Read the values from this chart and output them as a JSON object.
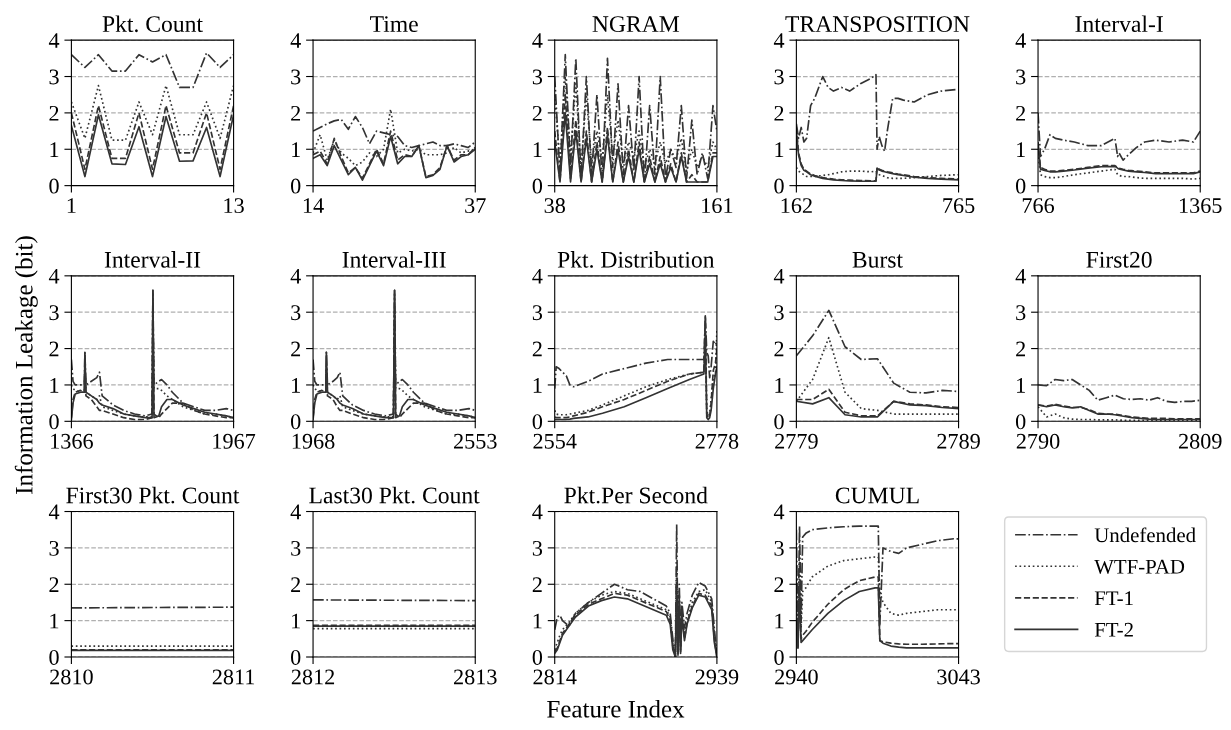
{
  "chart_data": [
    {
      "type": "line",
      "title": "Pkt. Count",
      "x": [
        1,
        2,
        3,
        4,
        5,
        6,
        7,
        8,
        9,
        10,
        11,
        12,
        13
      ],
      "xlim": [
        1,
        13
      ],
      "xticks": [
        1,
        13
      ],
      "ylim": [
        0,
        4
      ],
      "yticks": [
        0,
        1,
        2,
        3,
        4
      ],
      "grid": "y",
      "series": [
        {
          "color": "#333333",
          "line_style": "dashdot",
          "values": [
            3.6,
            3.25,
            3.6,
            3.15,
            3.15,
            3.6,
            3.4,
            3.6,
            2.7,
            2.7,
            3.65,
            3.25,
            3.6
          ]
        },
        {
          "color": "#333333",
          "line_style": "dotted",
          "values": [
            2.3,
            1.3,
            2.75,
            1.25,
            1.25,
            2.3,
            1.4,
            2.75,
            1.4,
            1.4,
            2.3,
            1.3,
            2.75
          ]
        },
        {
          "color": "#333333",
          "line_style": "dashed",
          "values": [
            2.0,
            0.45,
            2.2,
            0.75,
            0.75,
            2.0,
            0.45,
            2.2,
            0.9,
            0.9,
            2.0,
            0.45,
            2.2
          ]
        },
        {
          "color": "#333333",
          "line_style": "solid",
          "values": [
            1.65,
            0.25,
            1.95,
            0.6,
            0.58,
            1.62,
            0.25,
            1.9,
            0.67,
            0.68,
            1.6,
            0.25,
            1.95
          ]
        }
      ]
    },
    {
      "type": "line",
      "title": "Time",
      "x": [
        14,
        15,
        16,
        17,
        18,
        19,
        20,
        21,
        22,
        23,
        24,
        25,
        26,
        27,
        28,
        29,
        30,
        31,
        32,
        33,
        34,
        35,
        36,
        37
      ],
      "xlim": [
        14,
        37
      ],
      "xticks": [
        14,
        37
      ],
      "ylim": [
        0,
        4
      ],
      "yticks": [
        0,
        1,
        2,
        3,
        4
      ],
      "grid": "y",
      "series": [
        {
          "color": "#333333",
          "line_style": "dashdot",
          "values": [
            1.5,
            1.6,
            1.7,
            1.78,
            1.82,
            1.55,
            1.9,
            1.6,
            1.15,
            1.5,
            1.45,
            1.4,
            1.35,
            1.1,
            1.05,
            1.1,
            1.15,
            1.2,
            1.1,
            1.1,
            1.15,
            1.1,
            1.05,
            1.2
          ]
        },
        {
          "color": "#333333",
          "line_style": "dotted",
          "values": [
            0.9,
            1.4,
            0.7,
            1.25,
            0.9,
            0.75,
            0.55,
            0.65,
            0.9,
            0.8,
            1.0,
            2.1,
            0.9,
            1.0,
            0.95,
            1.0,
            0.85,
            0.85,
            0.85,
            0.9,
            1.05,
            0.9,
            0.95,
            1.0
          ]
        },
        {
          "color": "#333333",
          "line_style": "dashed",
          "values": [
            0.85,
            0.95,
            0.6,
            1.3,
            0.8,
            0.35,
            0.5,
            0.2,
            0.6,
            1.0,
            0.6,
            1.5,
            0.7,
            0.85,
            0.8,
            1.1,
            0.25,
            0.3,
            0.5,
            1.1,
            0.7,
            0.85,
            0.85,
            1.05
          ]
        },
        {
          "color": "#333333",
          "line_style": "solid",
          "values": [
            0.75,
            0.85,
            0.55,
            1.1,
            0.7,
            0.3,
            0.5,
            0.15,
            0.55,
            0.95,
            0.55,
            1.35,
            0.6,
            0.8,
            0.8,
            1.1,
            0.22,
            0.28,
            0.45,
            1.1,
            0.65,
            0.8,
            0.85,
            1.0
          ]
        }
      ]
    },
    {
      "type": "line",
      "title": "NGRAM",
      "x": [
        38,
        42,
        46,
        50,
        54,
        58,
        62,
        66,
        70,
        74,
        78,
        82,
        86,
        90,
        94,
        98,
        102,
        106,
        110,
        114,
        118,
        122,
        126,
        130,
        134,
        138,
        142,
        146,
        150,
        154,
        158,
        161
      ],
      "xlim": [
        38,
        161
      ],
      "xticks": [
        38,
        161
      ],
      "ylim": [
        0,
        4
      ],
      "yticks": [
        0,
        1,
        2,
        3,
        4
      ],
      "grid": "y",
      "series": [
        {
          "color": "#333333",
          "line_style": "dashdot",
          "values": [
            3.0,
            0.3,
            3.6,
            0.5,
            3.5,
            0.2,
            3.0,
            0.3,
            2.5,
            0.2,
            3.5,
            0.5,
            2.8,
            0.3,
            2.2,
            0.4,
            3.0,
            0.1,
            2.2,
            0.3,
            3.0,
            0.2,
            1.0,
            0.5,
            2.2,
            0.2,
            1.8,
            0.3,
            0.9,
            0.2,
            2.2,
            1.5
          ]
        },
        {
          "color": "#333333",
          "line_style": "dotted",
          "values": [
            2.5,
            0.6,
            3.0,
            0.8,
            2.8,
            0.5,
            2.5,
            0.6,
            1.5,
            0.7,
            2.5,
            0.8,
            1.8,
            0.6,
            1.2,
            0.8,
            1.5,
            0.5,
            1.0,
            0.6,
            1.2,
            0.6,
            1.0,
            0.7,
            1.3,
            0.4,
            1.0,
            0.5,
            0.8,
            0.5,
            1.2,
            1.0
          ]
        },
        {
          "color": "#333333",
          "line_style": "dashed",
          "values": [
            1.5,
            0.1,
            2.5,
            0.2,
            1.8,
            0.1,
            1.5,
            0.1,
            1.2,
            0.1,
            1.6,
            0.1,
            1.2,
            0.1,
            1.0,
            0.1,
            1.2,
            0.1,
            0.8,
            0.1,
            0.8,
            0.1,
            0.6,
            0.1,
            0.9,
            0.1,
            0.3,
            0.1,
            0.1,
            0.1,
            0.9,
            0.9
          ]
        },
        {
          "color": "#333333",
          "line_style": "solid",
          "values": [
            1.2,
            0.1,
            2.0,
            0.1,
            1.5,
            0.1,
            1.3,
            0.1,
            1.0,
            0.1,
            1.4,
            0.1,
            1.0,
            0.1,
            0.8,
            0.1,
            1.0,
            0.1,
            0.6,
            0.1,
            0.6,
            0.1,
            0.5,
            0.1,
            0.8,
            0.1,
            0.1,
            0.1,
            0.1,
            0.1,
            0.8,
            0.8
          ]
        }
      ]
    },
    {
      "type": "line",
      "title": "TRANSPOSITION",
      "x": [
        162,
        170,
        180,
        190,
        200,
        215,
        230,
        260,
        280,
        300,
        330,
        360,
        400,
        440,
        458,
        462,
        470,
        480,
        490,
        500,
        520,
        540,
        560,
        600,
        650,
        700,
        765
      ],
      "xlim": [
        162,
        765
      ],
      "xticks": [
        162,
        765
      ],
      "ylim": [
        0,
        4
      ],
      "yticks": [
        0,
        1,
        2,
        3,
        4
      ],
      "grid": "y",
      "series": [
        {
          "color": "#333333",
          "line_style": "dashdot",
          "values": [
            1.7,
            1.3,
            1.6,
            1.2,
            1.3,
            2.2,
            2.4,
            3.0,
            2.7,
            2.6,
            2.7,
            2.6,
            2.8,
            2.95,
            3.05,
            1.0,
            1.35,
            1.1,
            0.95,
            1.5,
            2.4,
            2.4,
            2.35,
            2.3,
            2.5,
            2.6,
            2.65
          ]
        },
        {
          "color": "#333333",
          "line_style": "dotted",
          "values": [
            0.5,
            0.4,
            0.35,
            0.3,
            0.25,
            0.25,
            0.25,
            0.28,
            0.3,
            0.33,
            0.38,
            0.4,
            0.4,
            0.38,
            0.4,
            0.35,
            0.3,
            0.28,
            0.25,
            0.22,
            0.2,
            0.2,
            0.2,
            0.22,
            0.25,
            0.28,
            0.3
          ]
        },
        {
          "color": "#333333",
          "line_style": "dashed",
          "values": [
            1.6,
            0.9,
            0.6,
            0.45,
            0.4,
            0.32,
            0.28,
            0.22,
            0.2,
            0.18,
            0.16,
            0.15,
            0.14,
            0.13,
            0.13,
            0.5,
            0.45,
            0.42,
            0.4,
            0.38,
            0.35,
            0.32,
            0.3,
            0.25,
            0.22,
            0.2,
            0.18
          ]
        },
        {
          "color": "#333333",
          "line_style": "solid",
          "values": [
            1.5,
            0.85,
            0.55,
            0.42,
            0.38,
            0.3,
            0.26,
            0.2,
            0.18,
            0.16,
            0.14,
            0.13,
            0.12,
            0.12,
            0.12,
            0.48,
            0.43,
            0.4,
            0.38,
            0.36,
            0.33,
            0.3,
            0.28,
            0.23,
            0.2,
            0.18,
            0.16
          ]
        }
      ]
    },
    {
      "type": "line",
      "title": "Interval-I",
      "x": [
        766,
        775,
        790,
        810,
        830,
        860,
        900,
        950,
        1000,
        1050,
        1060,
        1065,
        1080,
        1100,
        1130,
        1160,
        1200,
        1250,
        1300,
        1340,
        1365
      ],
      "xlim": [
        766,
        1365
      ],
      "xticks": [
        766,
        1365
      ],
      "ylim": [
        0,
        4
      ],
      "yticks": [
        0,
        1,
        2,
        3,
        4
      ],
      "grid": "y",
      "series": [
        {
          "color": "#333333",
          "line_style": "dashdot",
          "values": [
            2.0,
            0.8,
            1.0,
            1.4,
            1.3,
            1.25,
            1.2,
            1.1,
            1.1,
            1.3,
            0.8,
            0.9,
            0.7,
            0.85,
            1.05,
            1.2,
            1.25,
            1.2,
            1.25,
            1.2,
            1.5
          ]
        },
        {
          "color": "#333333",
          "line_style": "dotted",
          "values": [
            0.9,
            0.3,
            0.25,
            0.22,
            0.22,
            0.25,
            0.3,
            0.35,
            0.4,
            0.45,
            0.3,
            0.28,
            0.25,
            0.25,
            0.22,
            0.2,
            0.2,
            0.2,
            0.2,
            0.18,
            0.2
          ]
        },
        {
          "color": "#333333",
          "line_style": "dashed",
          "values": [
            1.2,
            0.5,
            0.45,
            0.4,
            0.4,
            0.42,
            0.45,
            0.5,
            0.55,
            0.55,
            0.5,
            0.48,
            0.45,
            0.42,
            0.4,
            0.38,
            0.35,
            0.35,
            0.35,
            0.35,
            0.4
          ]
        },
        {
          "color": "#333333",
          "line_style": "solid",
          "values": [
            1.1,
            0.45,
            0.42,
            0.38,
            0.38,
            0.4,
            0.43,
            0.48,
            0.52,
            0.53,
            0.48,
            0.46,
            0.43,
            0.4,
            0.38,
            0.36,
            0.33,
            0.33,
            0.33,
            0.33,
            0.38
          ]
        }
      ]
    },
    {
      "type": "line",
      "title": "Interval-II",
      "ylabel": "Information Leakage (bit)",
      "x": [
        1366,
        1372,
        1380,
        1400,
        1414,
        1416,
        1420,
        1440,
        1460,
        1470,
        1480,
        1520,
        1560,
        1600,
        1640,
        1665,
        1668,
        1672,
        1690,
        1700,
        1720,
        1740,
        1780,
        1820,
        1860,
        1900,
        1940,
        1967
      ],
      "xlim": [
        1366,
        1967
      ],
      "xticks": [
        1366,
        1967
      ],
      "ylim": [
        0,
        4
      ],
      "yticks": [
        0,
        1,
        2,
        3,
        4
      ],
      "grid": "y",
      "series": [
        {
          "color": "#333333",
          "line_style": "dashdot",
          "values": [
            1.7,
            1.1,
            1.0,
            1.0,
            1.0,
            1.9,
            1.0,
            1.1,
            1.2,
            1.35,
            0.7,
            0.45,
            0.3,
            0.2,
            0.15,
            0.2,
            3.6,
            1.0,
            1.1,
            1.15,
            1.0,
            0.8,
            0.5,
            0.4,
            0.3,
            0.3,
            0.35,
            0.3
          ]
        },
        {
          "color": "#333333",
          "line_style": "dotted",
          "values": [
            1.0,
            0.9,
            0.85,
            0.8,
            0.8,
            1.5,
            0.8,
            0.7,
            0.6,
            0.7,
            0.4,
            0.3,
            0.2,
            0.15,
            0.12,
            0.12,
            3.0,
            0.9,
            0.9,
            0.85,
            0.7,
            0.6,
            0.4,
            0.3,
            0.2,
            0.2,
            0.15,
            0.1
          ]
        },
        {
          "color": "#333333",
          "line_style": "dashed",
          "values": [
            0.1,
            0.6,
            0.8,
            0.85,
            0.8,
            1.5,
            0.7,
            0.6,
            0.4,
            0.3,
            0.3,
            0.2,
            0.1,
            0.05,
            0.05,
            0.1,
            3.5,
            0.2,
            0.1,
            0.2,
            0.35,
            0.5,
            0.5,
            0.3,
            0.2,
            0.15,
            0.1,
            0.1
          ]
        },
        {
          "color": "#333333",
          "line_style": "solid",
          "values": [
            0.05,
            0.5,
            0.75,
            0.8,
            0.8,
            1.9,
            0.8,
            0.7,
            0.6,
            0.5,
            0.45,
            0.35,
            0.2,
            0.15,
            0.1,
            0.1,
            3.6,
            0.1,
            0.15,
            0.4,
            0.6,
            0.6,
            0.45,
            0.35,
            0.25,
            0.2,
            0.15,
            0.1
          ]
        }
      ]
    },
    {
      "type": "line",
      "title": "Interval-III",
      "x": [
        1968,
        1974,
        1982,
        2000,
        2014,
        2016,
        2020,
        2040,
        2055,
        2065,
        2075,
        2110,
        2150,
        2190,
        2230,
        2258,
        2262,
        2266,
        2280,
        2290,
        2310,
        2330,
        2370,
        2410,
        2450,
        2490,
        2530,
        2553
      ],
      "xlim": [
        1968,
        2553
      ],
      "xticks": [
        1968,
        2553
      ],
      "ylim": [
        0,
        4
      ],
      "yticks": [
        0,
        1,
        2,
        3,
        4
      ],
      "grid": "y",
      "series": [
        {
          "color": "#333333",
          "line_style": "dashdot",
          "values": [
            1.7,
            1.1,
            1.0,
            1.0,
            1.0,
            1.9,
            1.0,
            1.1,
            1.2,
            1.35,
            0.7,
            0.45,
            0.3,
            0.2,
            0.15,
            0.2,
            3.6,
            1.0,
            1.1,
            1.15,
            1.0,
            0.8,
            0.5,
            0.4,
            0.3,
            0.3,
            0.35,
            0.3
          ]
        },
        {
          "color": "#333333",
          "line_style": "dotted",
          "values": [
            1.0,
            0.9,
            0.85,
            0.8,
            0.8,
            1.5,
            0.8,
            0.7,
            0.6,
            0.7,
            0.4,
            0.3,
            0.2,
            0.15,
            0.12,
            0.12,
            3.0,
            0.9,
            0.9,
            0.85,
            0.7,
            0.6,
            0.4,
            0.3,
            0.2,
            0.2,
            0.15,
            0.1
          ]
        },
        {
          "color": "#333333",
          "line_style": "dashed",
          "values": [
            0.1,
            0.6,
            0.8,
            0.85,
            0.8,
            1.5,
            0.7,
            0.6,
            0.4,
            0.3,
            0.3,
            0.2,
            0.1,
            0.05,
            0.05,
            0.1,
            3.5,
            0.2,
            0.1,
            0.2,
            0.35,
            0.5,
            0.5,
            0.3,
            0.2,
            0.15,
            0.1,
            0.1
          ]
        },
        {
          "color": "#333333",
          "line_style": "solid",
          "values": [
            0.05,
            0.5,
            0.75,
            0.8,
            0.8,
            1.9,
            0.8,
            0.7,
            0.6,
            0.5,
            0.45,
            0.35,
            0.2,
            0.15,
            0.1,
            0.1,
            3.6,
            0.1,
            0.15,
            0.4,
            0.6,
            0.6,
            0.45,
            0.35,
            0.25,
            0.2,
            0.15,
            0.1
          ]
        }
      ]
    },
    {
      "type": "line",
      "title": "Pkt. Distribution",
      "x": [
        2554,
        2556,
        2560,
        2570,
        2575,
        2580,
        2600,
        2620,
        2650,
        2680,
        2710,
        2740,
        2760,
        2762,
        2764,
        2766,
        2768,
        2770,
        2773,
        2776,
        2778
      ],
      "xlim": [
        2554,
        2778
      ],
      "xticks": [
        2554,
        2778
      ],
      "ylim": [
        0,
        4
      ],
      "yticks": [
        0,
        1,
        2,
        3,
        4
      ],
      "grid": "y",
      "series": [
        {
          "color": "#333333",
          "line_style": "dashdot",
          "values": [
            0.9,
            1.5,
            1.45,
            1.25,
            1.0,
            0.95,
            1.1,
            1.3,
            1.45,
            1.6,
            1.7,
            1.7,
            1.7,
            2.9,
            1.9,
            1.8,
            1.2,
            1.5,
            2.2,
            2.1,
            2.2
          ]
        },
        {
          "color": "#333333",
          "line_style": "dotted",
          "values": [
            0.3,
            0.2,
            0.18,
            0.18,
            0.2,
            0.22,
            0.3,
            0.45,
            0.7,
            0.95,
            1.15,
            1.3,
            1.35,
            2.2,
            0.3,
            0.15,
            0.2,
            0.6,
            1.2,
            1.3,
            2.5
          ]
        },
        {
          "color": "#333333",
          "line_style": "dashed",
          "values": [
            0.12,
            0.1,
            0.1,
            0.1,
            0.12,
            0.15,
            0.25,
            0.4,
            0.6,
            0.85,
            1.1,
            1.3,
            1.35,
            2.9,
            0.2,
            0.1,
            0.15,
            0.5,
            1.4,
            1.6,
            2.0
          ]
        },
        {
          "color": "#333333",
          "line_style": "solid",
          "values": [
            0.05,
            0.05,
            0.05,
            0.05,
            0.06,
            0.08,
            0.12,
            0.22,
            0.4,
            0.65,
            0.9,
            1.15,
            1.3,
            2.4,
            0.1,
            0.05,
            0.1,
            0.3,
            0.9,
            1.3,
            1.5
          ]
        }
      ]
    },
    {
      "type": "line",
      "title": "Burst",
      "x": [
        2779,
        2780,
        2781,
        2782,
        2783,
        2784,
        2785,
        2786,
        2787,
        2788,
        2789
      ],
      "xlim": [
        2779,
        2789
      ],
      "xticks": [
        2779,
        2789
      ],
      "ylim": [
        0,
        4
      ],
      "yticks": [
        0,
        1,
        2,
        3,
        4
      ],
      "grid": "y",
      "series": [
        {
          "color": "#333333",
          "line_style": "dashdot",
          "values": [
            1.8,
            2.35,
            3.05,
            2.05,
            1.7,
            1.72,
            1.05,
            0.8,
            0.78,
            0.85,
            0.82
          ]
        },
        {
          "color": "#333333",
          "line_style": "dotted",
          "values": [
            0.55,
            1.15,
            2.3,
            0.8,
            0.35,
            0.3,
            0.2,
            0.2,
            0.2,
            0.2,
            0.2
          ]
        },
        {
          "color": "#333333",
          "line_style": "dashed",
          "values": [
            0.6,
            0.6,
            0.88,
            0.25,
            0.15,
            0.15,
            0.55,
            0.48,
            0.45,
            0.4,
            0.38
          ]
        },
        {
          "color": "#333333",
          "line_style": "solid",
          "values": [
            0.55,
            0.48,
            0.65,
            0.18,
            0.12,
            0.12,
            0.55,
            0.45,
            0.43,
            0.38,
            0.35
          ]
        }
      ]
    },
    {
      "type": "line",
      "title": "First20",
      "x": [
        2790,
        2791,
        2792,
        2793,
        2794,
        2795,
        2796,
        2797,
        2798,
        2799,
        2800,
        2801,
        2802,
        2803,
        2804,
        2805,
        2806,
        2807,
        2808,
        2809
      ],
      "xlim": [
        2790,
        2809
      ],
      "xticks": [
        2790,
        2809
      ],
      "ylim": [
        0,
        4
      ],
      "yticks": [
        0,
        1,
        2,
        3,
        4
      ],
      "grid": "y",
      "series": [
        {
          "color": "#333333",
          "line_style": "dashdot",
          "values": [
            1.0,
            0.98,
            1.15,
            1.12,
            1.15,
            1.0,
            0.85,
            0.58,
            0.65,
            0.72,
            0.62,
            0.6,
            0.62,
            0.58,
            0.65,
            0.55,
            0.52,
            0.55,
            0.55,
            0.58
          ]
        },
        {
          "color": "#333333",
          "line_style": "dotted",
          "values": [
            0.4,
            0.12,
            0.2,
            0.1,
            0.06,
            0.05,
            0.05,
            0.04,
            0.04,
            0.04,
            0.03,
            0.03,
            0.03,
            0.03,
            0.03,
            0.03,
            0.03,
            0.03,
            0.03,
            0.03
          ]
        },
        {
          "color": "#333333",
          "line_style": "dashed",
          "values": [
            0.45,
            0.42,
            0.47,
            0.42,
            0.38,
            0.38,
            0.32,
            0.22,
            0.2,
            0.2,
            0.16,
            0.12,
            0.1,
            0.08,
            0.08,
            0.08,
            0.07,
            0.07,
            0.07,
            0.07
          ]
        },
        {
          "color": "#333333",
          "line_style": "solid",
          "values": [
            0.45,
            0.4,
            0.45,
            0.4,
            0.37,
            0.4,
            0.3,
            0.2,
            0.2,
            0.18,
            0.14,
            0.1,
            0.08,
            0.06,
            0.05,
            0.05,
            0.05,
            0.05,
            0.05,
            0.05
          ]
        }
      ]
    },
    {
      "type": "line",
      "title": "First30 Pkt. Count",
      "x": [
        2810,
        2811
      ],
      "xlim": [
        2810,
        2811
      ],
      "xticks": [
        2810,
        2811
      ],
      "ylim": [
        0,
        4
      ],
      "yticks": [
        0,
        1,
        2,
        3,
        4
      ],
      "grid": "y",
      "series": [
        {
          "color": "#333333",
          "line_style": "dashdot",
          "values": [
            1.35,
            1.37
          ]
        },
        {
          "color": "#333333",
          "line_style": "dotted",
          "values": [
            0.3,
            0.3
          ]
        },
        {
          "color": "#333333",
          "line_style": "dashed",
          "values": [
            0.2,
            0.2
          ]
        },
        {
          "color": "#333333",
          "line_style": "solid",
          "values": [
            0.18,
            0.18
          ]
        }
      ]
    },
    {
      "type": "line",
      "title": "Last30 Pkt. Count",
      "x": [
        2812,
        2813
      ],
      "xlim": [
        2812,
        2813
      ],
      "xticks": [
        2812,
        2813
      ],
      "ylim": [
        0,
        4
      ],
      "yticks": [
        0,
        1,
        2,
        3,
        4
      ],
      "grid": "y",
      "series": [
        {
          "color": "#333333",
          "line_style": "dashdot",
          "values": [
            1.57,
            1.55
          ]
        },
        {
          "color": "#333333",
          "line_style": "dotted",
          "values": [
            0.78,
            0.78
          ]
        },
        {
          "color": "#333333",
          "line_style": "dashed",
          "values": [
            0.87,
            0.87
          ]
        },
        {
          "color": "#333333",
          "line_style": "solid",
          "values": [
            0.85,
            0.85
          ]
        }
      ]
    },
    {
      "type": "line",
      "title": "Pkt.Per Second",
      "xlabel": "Feature Index",
      "x": [
        2814,
        2816,
        2818,
        2820,
        2825,
        2830,
        2840,
        2850,
        2860,
        2870,
        2880,
        2890,
        2900,
        2903,
        2905,
        2907,
        2908,
        2909,
        2910,
        2911,
        2912,
        2914,
        2916,
        2920,
        2925,
        2930,
        2935,
        2937,
        2939
      ],
      "xlim": [
        2814,
        2939
      ],
      "xticks": [
        2814,
        2939
      ],
      "ylim": [
        0,
        4
      ],
      "yticks": [
        0,
        1,
        2,
        3,
        4
      ],
      "grid": "y",
      "series": [
        {
          "color": "#333333",
          "line_style": "dashdot",
          "values": [
            0.75,
            1.1,
            1.15,
            1.0,
            0.85,
            1.2,
            1.5,
            1.75,
            2.0,
            1.85,
            1.8,
            1.6,
            1.4,
            1.2,
            0.5,
            0.0,
            3.65,
            0.2,
            2.0,
            0.3,
            1.5,
            0.8,
            1.2,
            1.7,
            2.05,
            1.95,
            1.6,
            0.8,
            0.0
          ]
        },
        {
          "color": "#333333",
          "line_style": "dotted",
          "values": [
            0.2,
            0.4,
            0.6,
            0.75,
            0.95,
            1.2,
            1.5,
            1.7,
            1.8,
            1.75,
            1.6,
            1.45,
            1.3,
            1.1,
            0.4,
            0.0,
            2.5,
            0.1,
            1.7,
            0.2,
            1.2,
            0.6,
            1.0,
            1.5,
            1.8,
            1.85,
            1.5,
            0.6,
            0.0
          ]
        },
        {
          "color": "#333333",
          "line_style": "dashed",
          "values": [
            0.15,
            0.25,
            0.45,
            0.65,
            0.9,
            1.15,
            1.45,
            1.6,
            1.75,
            1.7,
            1.55,
            1.4,
            1.25,
            1.0,
            0.3,
            0.0,
            2.0,
            0.1,
            1.6,
            0.15,
            1.2,
            0.5,
            0.95,
            1.4,
            1.75,
            1.7,
            1.4,
            0.5,
            0.0
          ]
        },
        {
          "color": "#333333",
          "line_style": "solid",
          "values": [
            0.1,
            0.2,
            0.4,
            0.6,
            0.85,
            1.1,
            1.4,
            1.55,
            1.65,
            1.6,
            1.45,
            1.3,
            1.15,
            0.9,
            0.2,
            0.0,
            1.8,
            0.05,
            1.5,
            0.1,
            1.1,
            0.45,
            0.9,
            1.35,
            1.7,
            1.65,
            1.3,
            0.4,
            0.0
          ]
        }
      ]
    },
    {
      "type": "line",
      "title": "CUMUL",
      "legend": "right",
      "x": [
        2940,
        2941,
        2942,
        2943,
        2944,
        2946,
        2950,
        2960,
        2970,
        2980,
        2990,
        2992,
        2993,
        2995,
        3000,
        3005,
        3010,
        3020,
        3030,
        3040,
        3043
      ],
      "xlim": [
        2940,
        3043
      ],
      "xticks": [
        2940,
        3043
      ],
      "ylim": [
        0,
        4
      ],
      "yticks": [
        0,
        1,
        2,
        3,
        4
      ],
      "grid": "y",
      "series": [
        {
          "name": "Undefended",
          "color": "#333333",
          "line_style": "dashdot",
          "values": [
            3.5,
            0.4,
            3.6,
            1.0,
            3.3,
            3.4,
            3.5,
            3.55,
            3.58,
            3.6,
            3.6,
            3.6,
            0.9,
            3.0,
            2.9,
            2.85,
            3.0,
            3.1,
            3.2,
            3.25,
            3.25
          ]
        },
        {
          "name": "WTF-PAD",
          "color": "#333333",
          "line_style": "dotted",
          "values": [
            2.5,
            0.3,
            2.6,
            0.8,
            1.8,
            1.9,
            2.2,
            2.5,
            2.65,
            2.7,
            2.75,
            2.75,
            1.8,
            1.5,
            1.2,
            1.15,
            1.2,
            1.25,
            1.3,
            1.3,
            1.3
          ]
        },
        {
          "name": "FT-1",
          "color": "#333333",
          "line_style": "dashed",
          "values": [
            1.0,
            0.25,
            2.0,
            0.5,
            0.6,
            0.7,
            0.95,
            1.45,
            1.85,
            2.1,
            2.2,
            2.2,
            0.45,
            0.42,
            0.38,
            0.36,
            0.35,
            0.35,
            0.36,
            0.37,
            0.37
          ]
        },
        {
          "name": "FT-2",
          "color": "#333333",
          "line_style": "solid",
          "values": [
            0.8,
            0.25,
            1.8,
            0.4,
            0.45,
            0.55,
            0.75,
            1.2,
            1.55,
            1.8,
            1.9,
            1.9,
            0.45,
            0.38,
            0.3,
            0.27,
            0.25,
            0.25,
            0.25,
            0.25,
            0.25
          ]
        }
      ]
    }
  ]
}
